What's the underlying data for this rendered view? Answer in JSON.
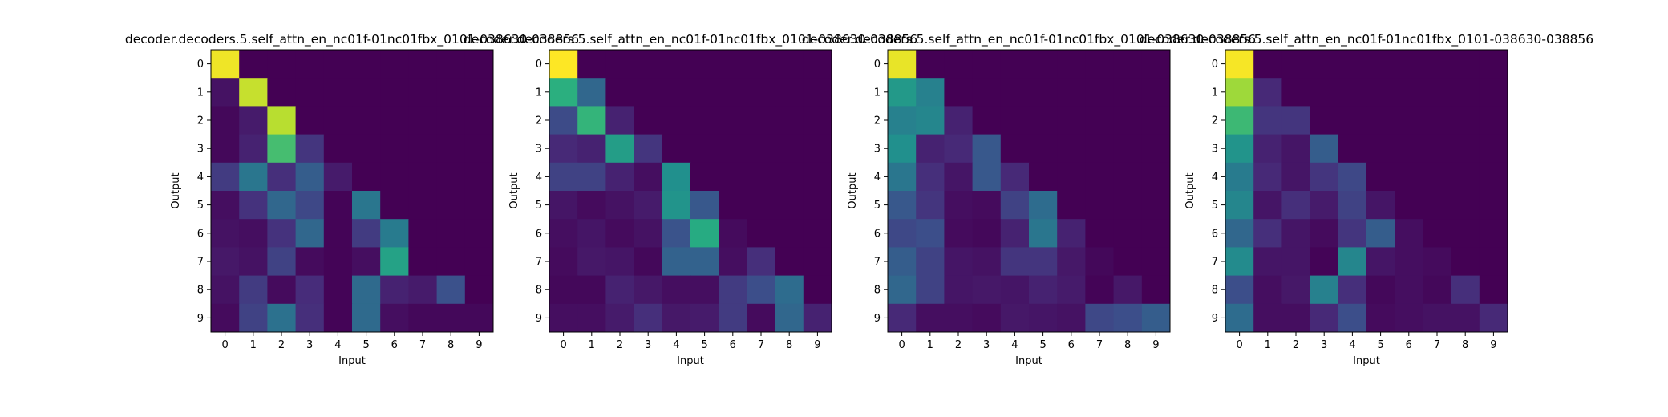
{
  "chart_data": [
    {
      "type": "heatmap",
      "title": "decoder.decoders.5.self_attn_en_nc01f-01nc01fbx_0101-038630-038856",
      "xlabel": "Input",
      "ylabel": "Output",
      "x": [
        "0",
        "1",
        "2",
        "3",
        "4",
        "5",
        "6",
        "7",
        "8",
        "9"
      ],
      "y": [
        "0",
        "1",
        "2",
        "3",
        "4",
        "5",
        "6",
        "7",
        "8",
        "9"
      ],
      "colormap": "viridis",
      "vmin": 0,
      "vmax": 1,
      "values": [
        [
          0.98,
          0.0,
          0.0,
          0.0,
          0.0,
          0.0,
          0.0,
          0.0,
          0.0,
          0.0
        ],
        [
          0.05,
          0.92,
          0.0,
          0.0,
          0.0,
          0.0,
          0.0,
          0.0,
          0.0,
          0.0
        ],
        [
          0.02,
          0.08,
          0.9,
          0.0,
          0.0,
          0.0,
          0.0,
          0.0,
          0.0,
          0.0
        ],
        [
          0.02,
          0.1,
          0.7,
          0.16,
          0.0,
          0.0,
          0.0,
          0.0,
          0.0,
          0.0
        ],
        [
          0.18,
          0.4,
          0.14,
          0.3,
          0.08,
          0.0,
          0.0,
          0.0,
          0.0,
          0.0
        ],
        [
          0.04,
          0.15,
          0.34,
          0.22,
          0.01,
          0.4,
          0.0,
          0.0,
          0.0,
          0.0
        ],
        [
          0.05,
          0.04,
          0.15,
          0.34,
          0.01,
          0.18,
          0.42,
          0.0,
          0.0,
          0.0
        ],
        [
          0.07,
          0.05,
          0.2,
          0.03,
          0.01,
          0.04,
          0.58,
          0.0,
          0.0,
          0.0
        ],
        [
          0.05,
          0.18,
          0.03,
          0.13,
          0.01,
          0.35,
          0.1,
          0.08,
          0.25,
          0.0
        ],
        [
          0.03,
          0.2,
          0.38,
          0.14,
          0.01,
          0.35,
          0.04,
          0.02,
          0.02,
          0.02
        ]
      ]
    },
    {
      "type": "heatmap",
      "title": "decoder.decoders.5.self_attn_en_nc01f-01nc01fbx_0101-038630-038856",
      "xlabel": "Input",
      "ylabel": "Output",
      "x": [
        "0",
        "1",
        "2",
        "3",
        "4",
        "5",
        "6",
        "7",
        "8",
        "9"
      ],
      "y": [
        "0",
        "1",
        "2",
        "3",
        "4",
        "5",
        "6",
        "7",
        "8",
        "9"
      ],
      "colormap": "viridis",
      "vmin": 0,
      "vmax": 1,
      "values": [
        [
          1.0,
          0.0,
          0.0,
          0.0,
          0.0,
          0.0,
          0.0,
          0.0,
          0.0,
          0.0
        ],
        [
          0.64,
          0.34,
          0.0,
          0.0,
          0.0,
          0.0,
          0.0,
          0.0,
          0.0,
          0.0
        ],
        [
          0.23,
          0.66,
          0.1,
          0.0,
          0.0,
          0.0,
          0.0,
          0.0,
          0.0,
          0.0
        ],
        [
          0.12,
          0.1,
          0.56,
          0.16,
          0.0,
          0.0,
          0.0,
          0.0,
          0.0,
          0.0
        ],
        [
          0.2,
          0.2,
          0.1,
          0.04,
          0.5,
          0.0,
          0.0,
          0.0,
          0.0,
          0.0
        ],
        [
          0.06,
          0.03,
          0.05,
          0.08,
          0.52,
          0.28,
          0.0,
          0.0,
          0.0,
          0.0
        ],
        [
          0.04,
          0.06,
          0.03,
          0.05,
          0.26,
          0.62,
          0.03,
          0.0,
          0.0,
          0.0
        ],
        [
          0.03,
          0.07,
          0.06,
          0.02,
          0.32,
          0.32,
          0.04,
          0.14,
          0.0,
          0.0
        ],
        [
          0.02,
          0.02,
          0.1,
          0.07,
          0.04,
          0.04,
          0.18,
          0.24,
          0.36,
          0.0
        ],
        [
          0.04,
          0.04,
          0.08,
          0.14,
          0.07,
          0.08,
          0.18,
          0.03,
          0.34,
          0.1
        ]
      ]
    },
    {
      "type": "heatmap",
      "title": "decoder.decoders.5.self_attn_en_nc01f-01nc01fbx_0101-038630-038856",
      "xlabel": "Input",
      "ylabel": "Output",
      "x": [
        "0",
        "1",
        "2",
        "3",
        "4",
        "5",
        "6",
        "7",
        "8",
        "9"
      ],
      "y": [
        "0",
        "1",
        "2",
        "3",
        "4",
        "5",
        "6",
        "7",
        "8",
        "9"
      ],
      "colormap": "viridis",
      "vmin": 0,
      "vmax": 1,
      "values": [
        [
          0.97,
          0.0,
          0.0,
          0.0,
          0.0,
          0.0,
          0.0,
          0.0,
          0.0,
          0.0
        ],
        [
          0.54,
          0.44,
          0.0,
          0.0,
          0.0,
          0.0,
          0.0,
          0.0,
          0.0,
          0.0
        ],
        [
          0.44,
          0.46,
          0.1,
          0.0,
          0.0,
          0.0,
          0.0,
          0.0,
          0.0,
          0.0
        ],
        [
          0.5,
          0.1,
          0.12,
          0.28,
          0.0,
          0.0,
          0.0,
          0.0,
          0.0,
          0.0
        ],
        [
          0.4,
          0.14,
          0.06,
          0.28,
          0.12,
          0.0,
          0.0,
          0.0,
          0.0,
          0.0
        ],
        [
          0.28,
          0.16,
          0.04,
          0.03,
          0.2,
          0.36,
          0.0,
          0.0,
          0.0,
          0.0
        ],
        [
          0.22,
          0.24,
          0.03,
          0.02,
          0.1,
          0.4,
          0.1,
          0.0,
          0.0,
          0.0
        ],
        [
          0.3,
          0.2,
          0.06,
          0.05,
          0.16,
          0.16,
          0.07,
          0.02,
          0.0,
          0.0
        ],
        [
          0.34,
          0.2,
          0.06,
          0.07,
          0.06,
          0.1,
          0.08,
          0.01,
          0.07,
          0.0
        ],
        [
          0.12,
          0.04,
          0.04,
          0.03,
          0.07,
          0.06,
          0.05,
          0.22,
          0.24,
          0.3
        ]
      ]
    },
    {
      "type": "heatmap",
      "title": "decoder.decoders.5.self_attn_en_nc01f-01nc01fbx_0101-038630-038856",
      "xlabel": "Input",
      "ylabel": "Output",
      "x": [
        "0",
        "1",
        "2",
        "3",
        "4",
        "5",
        "6",
        "7",
        "8",
        "9"
      ],
      "y": [
        "0",
        "1",
        "2",
        "3",
        "4",
        "5",
        "6",
        "7",
        "8",
        "9"
      ],
      "colormap": "viridis",
      "vmin": 0,
      "vmax": 1,
      "values": [
        [
          0.99,
          0.0,
          0.0,
          0.0,
          0.0,
          0.0,
          0.0,
          0.0,
          0.0,
          0.0
        ],
        [
          0.86,
          0.12,
          0.0,
          0.0,
          0.0,
          0.0,
          0.0,
          0.0,
          0.0,
          0.0
        ],
        [
          0.68,
          0.16,
          0.16,
          0.0,
          0.0,
          0.0,
          0.0,
          0.0,
          0.0,
          0.0
        ],
        [
          0.52,
          0.1,
          0.06,
          0.3,
          0.0,
          0.0,
          0.0,
          0.0,
          0.0,
          0.0
        ],
        [
          0.42,
          0.12,
          0.06,
          0.16,
          0.22,
          0.0,
          0.0,
          0.0,
          0.0,
          0.0
        ],
        [
          0.46,
          0.06,
          0.14,
          0.08,
          0.2,
          0.06,
          0.0,
          0.0,
          0.0,
          0.0
        ],
        [
          0.34,
          0.14,
          0.06,
          0.03,
          0.16,
          0.3,
          0.04,
          0.0,
          0.0,
          0.0
        ],
        [
          0.48,
          0.06,
          0.06,
          0.01,
          0.46,
          0.06,
          0.04,
          0.03,
          0.0,
          0.0
        ],
        [
          0.24,
          0.04,
          0.07,
          0.44,
          0.14,
          0.02,
          0.04,
          0.02,
          0.14,
          0.0
        ],
        [
          0.36,
          0.04,
          0.04,
          0.12,
          0.24,
          0.03,
          0.04,
          0.05,
          0.05,
          0.12
        ]
      ]
    }
  ]
}
